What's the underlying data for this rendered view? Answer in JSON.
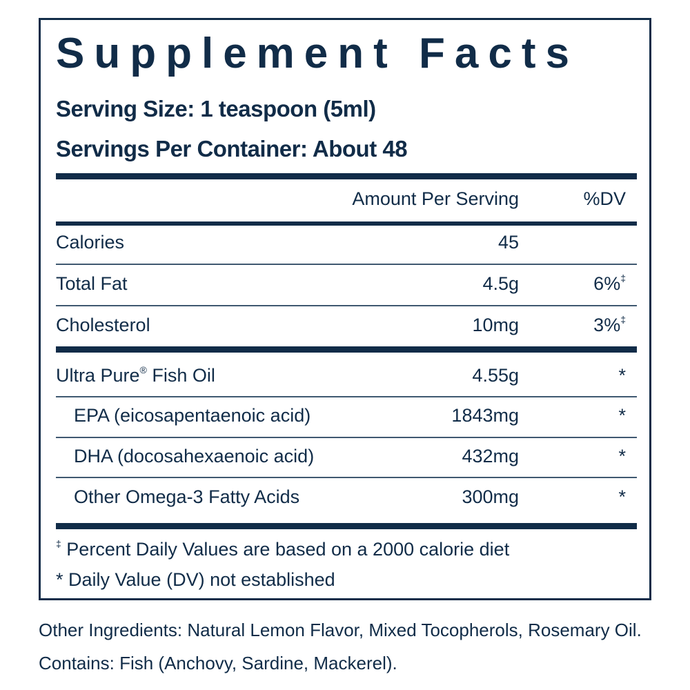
{
  "title": "Supplement Facts",
  "serving_size": "Serving Size: 1 teaspoon (5ml)",
  "servings_per_container": "Servings Per Container: About 48",
  "header": {
    "amount": "Amount Per Serving",
    "dv": "%DV"
  },
  "nutrients": [
    {
      "name": "Calories",
      "amount": "45",
      "dv": "",
      "dv_mark": ""
    },
    {
      "name": "Total Fat",
      "amount": "4.5g",
      "dv": "6%",
      "dv_mark": "‡"
    },
    {
      "name": "Cholesterol",
      "amount": "10mg",
      "dv": "3%",
      "dv_mark": "‡"
    }
  ],
  "ingredients": [
    {
      "name": "Ultra Pure",
      "name_mark": "®",
      "name_rest": " Fish Oil",
      "amount": "4.55g",
      "dv": "*",
      "indent": false
    },
    {
      "name": "EPA (eicosapentaenoic acid)",
      "name_mark": "",
      "name_rest": "",
      "amount": "1843mg",
      "dv": "*",
      "indent": true
    },
    {
      "name": "DHA (docosahexaenoic acid)",
      "name_mark": "",
      "name_rest": "",
      "amount": "432mg",
      "dv": "*",
      "indent": true
    },
    {
      "name": "Other Omega-3 Fatty Acids",
      "name_mark": "",
      "name_rest": "",
      "amount": "300mg",
      "dv": "*",
      "indent": true
    }
  ],
  "footnotes": {
    "dv_basis_mark": "‡",
    "dv_basis": " Percent Daily Values are based on a 2000 calorie diet",
    "not_established": "* Daily Value (DV) not established"
  },
  "other_ingredients": "Other Ingredients: Natural Lemon Flavor, Mixed Tocopherols, Rosemary Oil.",
  "contains": "Contains: Fish (Anchovy, Sardine, Mackerel).",
  "colors": {
    "ink": "#112c48",
    "background": "#ffffff"
  }
}
